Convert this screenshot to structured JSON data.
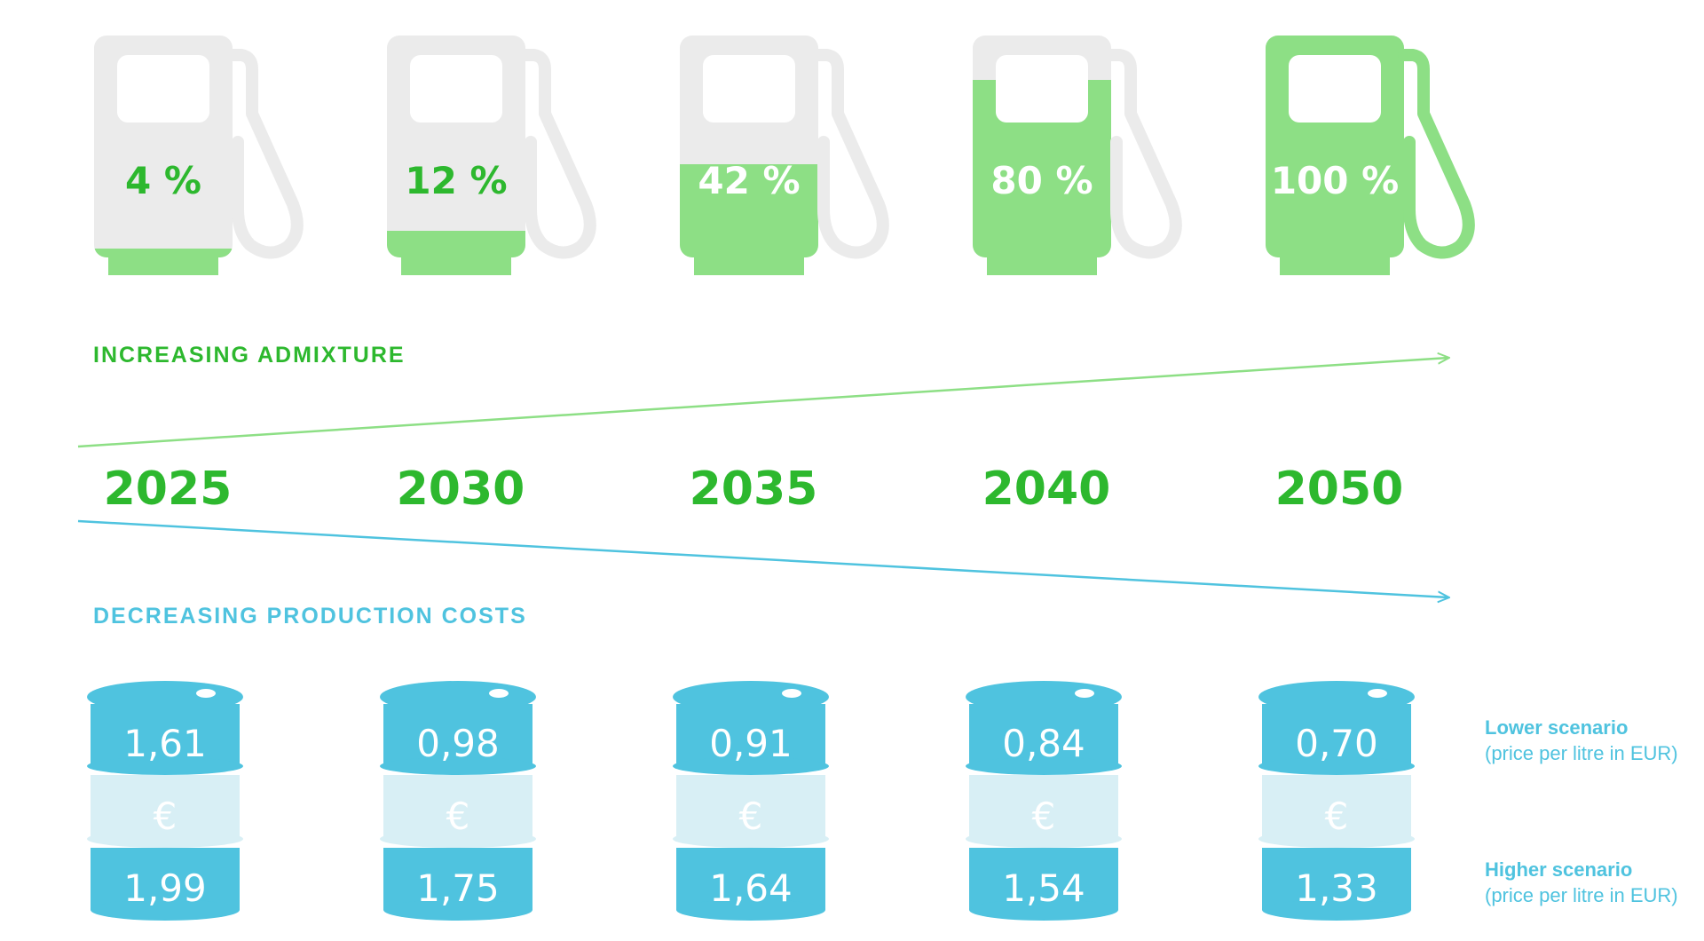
{
  "colors": {
    "green": "#2db82e",
    "light_green": "#8ddf85",
    "pump_grey": "#ebebeb",
    "cyan": "#4fc3df",
    "light_cyan": "#d8eff5",
    "arrow_green": "#8ddf85",
    "arrow_cyan": "#4fc3df"
  },
  "admixture_label": "INCREASING ADMIXTURE",
  "costs_label": "DECREASING PRODUCTION COSTS",
  "euro_symbol": "€",
  "pump_icon": "fuel-pump-icon",
  "barrel_icon": "oil-barrel-icon",
  "periods": [
    {
      "year": "2025",
      "admixture_label": "4 %",
      "fill_fraction": 0.04,
      "lower": "1,61",
      "higher": "1,99"
    },
    {
      "year": "2030",
      "admixture_label": "12 %",
      "fill_fraction": 0.12,
      "lower": "0,98",
      "higher": "1,75"
    },
    {
      "year": "2035",
      "admixture_label": "42 %",
      "fill_fraction": 0.42,
      "lower": "0,91",
      "higher": "1,64"
    },
    {
      "year": "2040",
      "admixture_label": "80 %",
      "fill_fraction": 0.8,
      "lower": "0,84",
      "higher": "1,54"
    },
    {
      "year": "2050",
      "admixture_label": "100 %",
      "fill_fraction": 1.0,
      "lower": "0,70",
      "higher": "1,33"
    }
  ],
  "legend": {
    "lower_title": "Lower scenario",
    "lower_sub": "(price per litre in EUR)",
    "higher_title": "Higher scenario",
    "higher_sub": "(price per litre in EUR)"
  }
}
